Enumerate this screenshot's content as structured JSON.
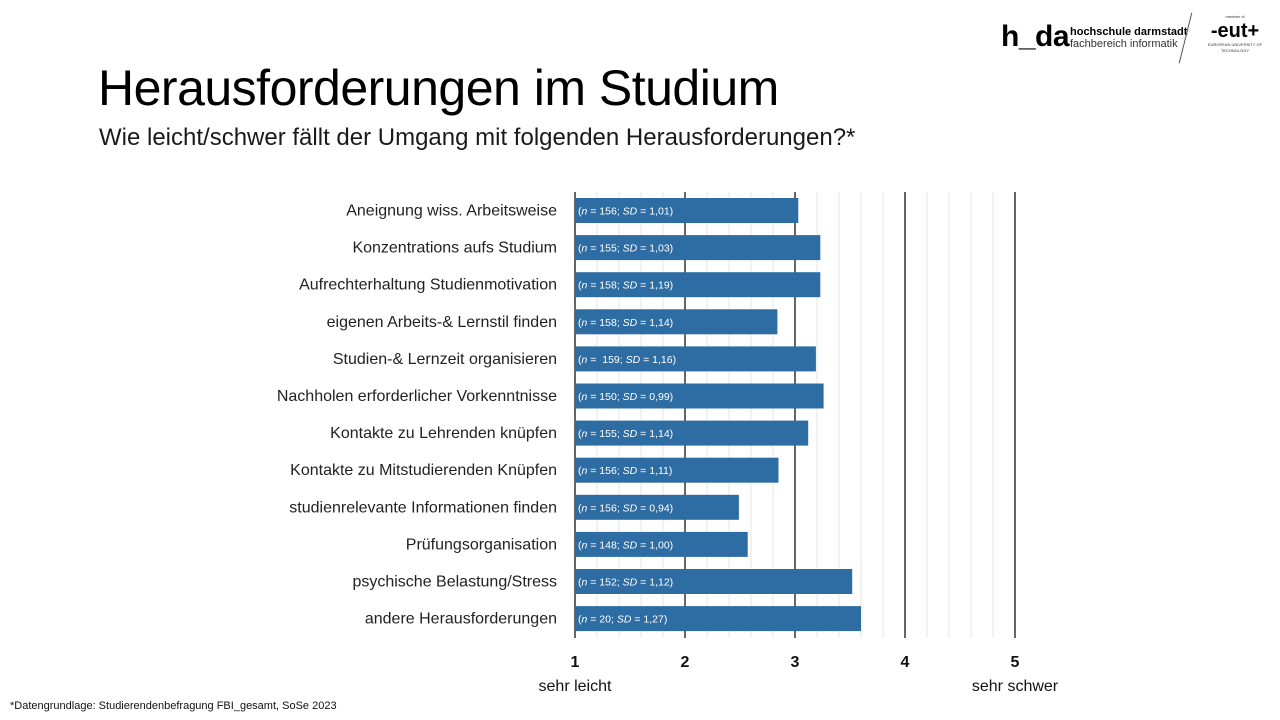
{
  "header": {
    "title": "Herausforderungen im Studium",
    "subtitle": "Wie leicht/schwer fällt der Umgang mit folgenden Herausforderungen?*"
  },
  "logo": {
    "short": "h_da",
    "line1": "hochschule darmstadt",
    "line2": "fachbereich informatik",
    "partner_small": "member of",
    "partner_big": "-eut+",
    "partner_caption": "EUROPEAN UNIVERSITY OF TECHNOLOGY"
  },
  "footnote": "*Datengrundlage: Studierendenbefragung FBI_gesamt, SoSe 2023",
  "chart_data": {
    "type": "bar",
    "orientation": "horizontal",
    "title": "Herausforderungen im Studium",
    "xlabel": "",
    "ylabel": "",
    "xlim": [
      1,
      5
    ],
    "x_ticks": [
      "1",
      "2",
      "3",
      "4",
      "5"
    ],
    "x_anchor_labels": {
      "1": "sehr leicht",
      "5": "sehr schwer"
    },
    "grid": true,
    "bar_color": "#2E6DA4",
    "categories": [
      "Aneignung wiss. Arbeitsweise",
      "Konzentrations aufs Studium",
      "Aufrechterhaltung Studienmotivation",
      "eigenen Arbeits-& Lernstil finden",
      "Studien-& Lernzeit organisieren",
      "Nachholen erforderlicher Vorkenntnisse",
      "Kontakte zu Lehrenden knüpfen",
      "Kontakte zu Mitstudierenden Knüpfen",
      "studienrelevante Informationen finden",
      "Prüfungsorganisation",
      "psychische Belastung/Stress",
      "andere Herausforderungen"
    ],
    "values": [
      3.03,
      3.23,
      3.23,
      2.84,
      3.19,
      3.26,
      3.12,
      2.85,
      2.49,
      2.57,
      3.52,
      3.6
    ],
    "bar_labels": [
      {
        "n": "156",
        "sd": "1,01"
      },
      {
        "n": "155",
        "sd": "1,03"
      },
      {
        "n": "158",
        "sd": "1,19"
      },
      {
        "n": "158",
        "sd": "1,14"
      },
      {
        "n": " 159",
        "sd": "1,16"
      },
      {
        "n": "150",
        "sd": "0,99"
      },
      {
        "n": "155",
        "sd": "1,14"
      },
      {
        "n": "156",
        "sd": "1,11"
      },
      {
        "n": "156",
        "sd": "0,94"
      },
      {
        "n": "148",
        "sd": "1,00"
      },
      {
        "n": "152",
        "sd": "1,12"
      },
      {
        "n": "20",
        "sd": "1,27"
      }
    ]
  }
}
